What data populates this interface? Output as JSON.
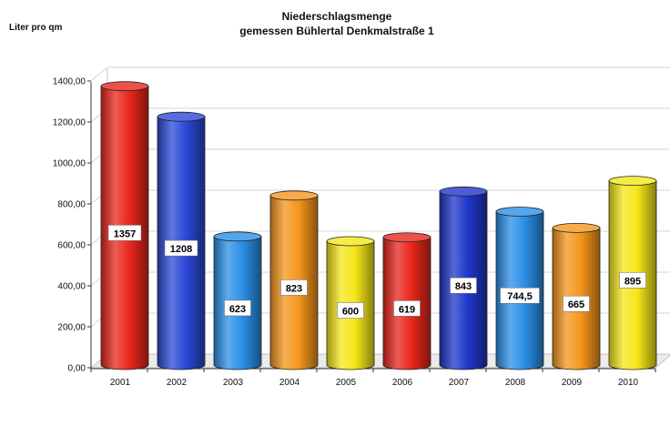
{
  "chart_data": {
    "type": "bar",
    "title": "Niederschlagsmenge",
    "subtitle": "gemessen Bühlertal Denkmalstraße 1",
    "ylabel": "Liter pro qm",
    "xlabel": "",
    "categories": [
      "2001",
      "2002",
      "2003",
      "2004",
      "2005",
      "2006",
      "2007",
      "2008",
      "2009",
      "2010"
    ],
    "values": [
      1357,
      1208,
      623,
      823,
      600,
      619,
      843,
      744.5,
      665,
      895
    ],
    "value_labels": [
      "1357",
      "1208",
      "623",
      "823",
      "600",
      "619",
      "843",
      "744,5",
      "665",
      "895"
    ],
    "colors": [
      "#e8261c",
      "#2b48d8",
      "#2b8fe8",
      "#f5961c",
      "#f5e619",
      "#e8261c",
      "#1f36c9",
      "#2b8fe8",
      "#f5961c",
      "#f5e619"
    ],
    "ylim": [
      0,
      1400
    ],
    "yticks": [
      "0,00",
      "200,00",
      "400,00",
      "600,00",
      "800,00",
      "1000,00",
      "1200,00",
      "1400,00"
    ],
    "grid": true,
    "legend": "none",
    "style": "3d-cylinders"
  }
}
